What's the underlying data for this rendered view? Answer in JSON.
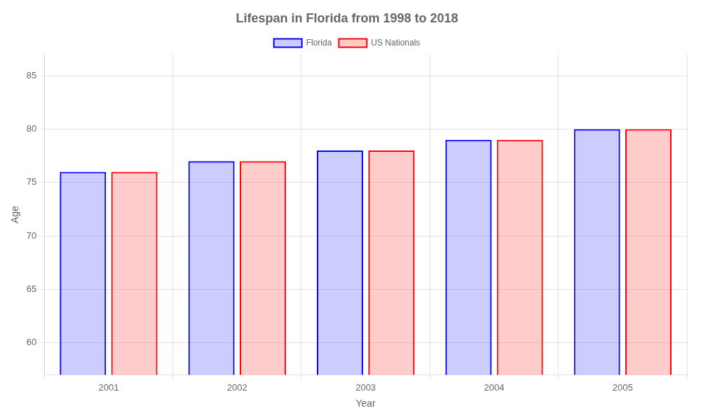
{
  "chart_data": {
    "type": "bar",
    "title": "Lifespan in Florida from 1998 to 2018",
    "x_label": "Year",
    "y_label": "Age",
    "categories": [
      "2001",
      "2002",
      "2003",
      "2004",
      "2005"
    ],
    "series": [
      {
        "name": "Florida",
        "color": "#0000ff",
        "values": [
          76,
          77,
          78,
          79,
          80
        ]
      },
      {
        "name": "US Nationals",
        "color": "#ff0000",
        "values": [
          76,
          77,
          78,
          79,
          80
        ]
      }
    ],
    "ylim": [
      57,
      87
    ],
    "yticks": [
      60,
      65,
      70,
      75,
      80,
      85
    ],
    "grid": true,
    "legend": "top"
  }
}
